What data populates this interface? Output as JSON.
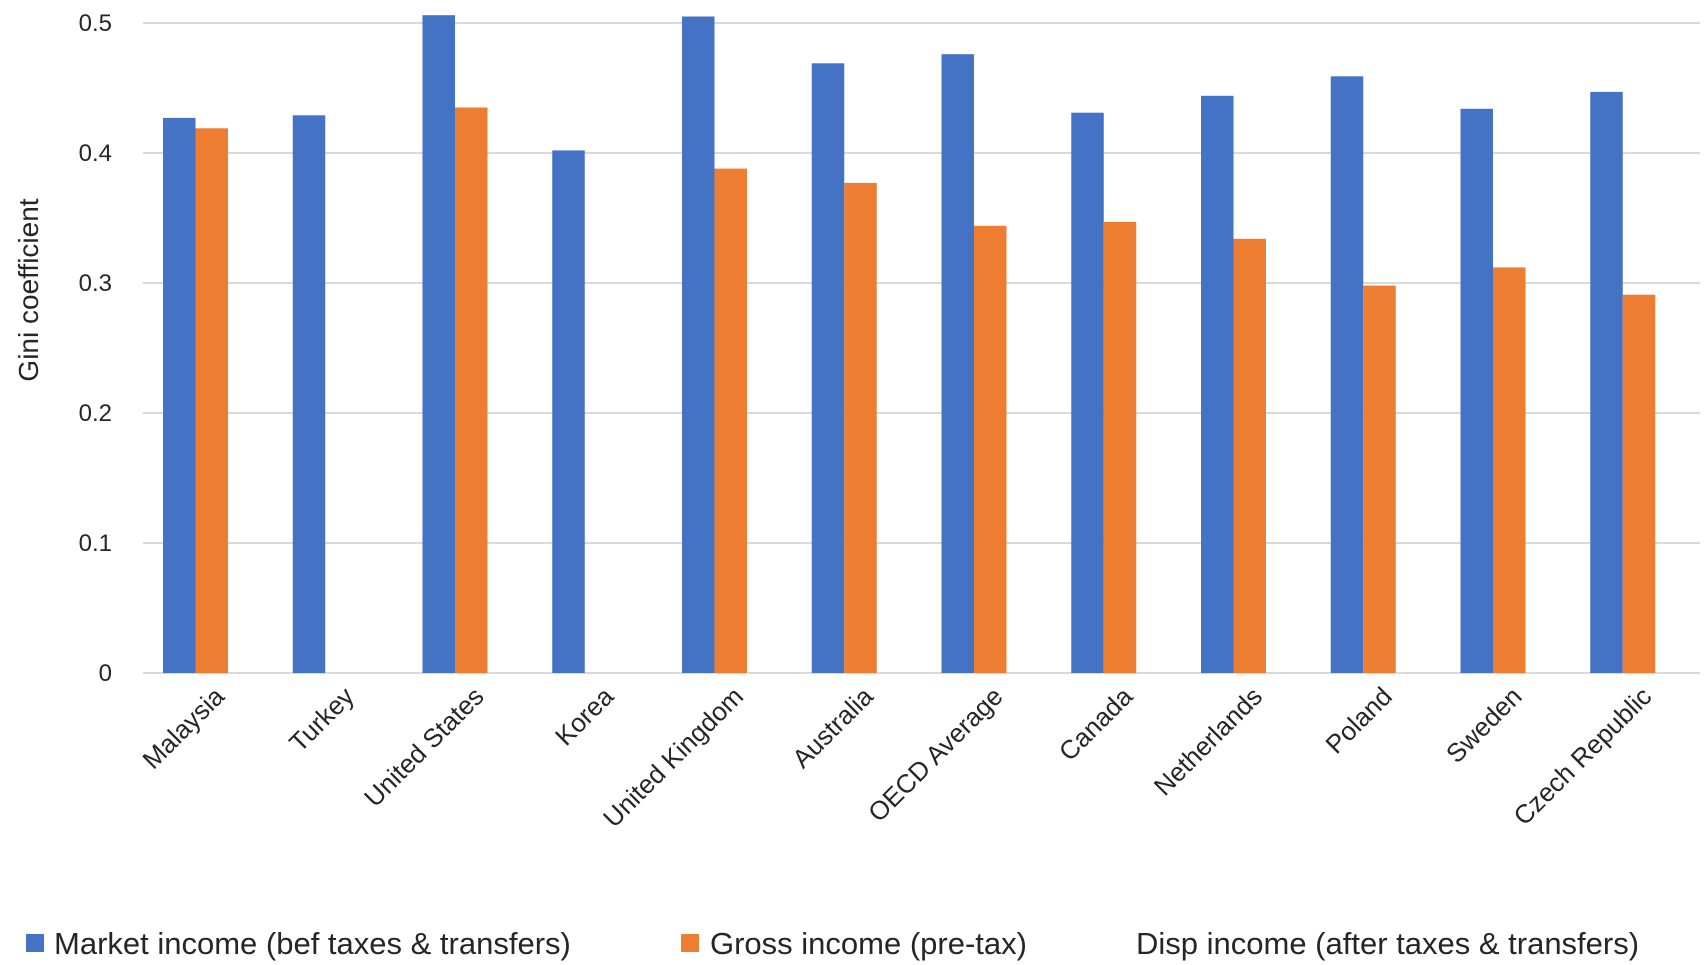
{
  "chart_data": {
    "type": "bar",
    "title": "",
    "xlabel": "",
    "ylabel": "Gini coefficient",
    "ylim": [
      0,
      0.5
    ],
    "yticks": [
      "0",
      "0.1",
      "0.2",
      "0.3",
      "0.4",
      "0.5"
    ],
    "ytick_values": [
      0,
      0.1,
      0.2,
      0.3,
      0.4,
      0.5
    ],
    "grid": true,
    "legend_position": "bottom",
    "categories": [
      "Malaysia",
      "Turkey",
      "United States",
      "Korea",
      "United Kingdom",
      "Australia",
      "OECD Average",
      "Canada",
      "Netherlands",
      "Poland",
      "Sweden",
      "Czech Republic"
    ],
    "series": [
      {
        "name": "Market income (bef taxes & transfers)",
        "color": "#4472c4",
        "values": [
          0.427,
          0.429,
          0.506,
          0.402,
          0.505,
          0.469,
          0.476,
          0.431,
          0.444,
          0.459,
          0.434,
          0.447
        ]
      },
      {
        "name": "Gross income (pre-tax)",
        "color": "#ed7d31",
        "values": [
          0.419,
          null,
          0.435,
          null,
          0.388,
          0.377,
          0.344,
          0.347,
          0.334,
          0.298,
          0.312,
          0.291
        ]
      },
      {
        "name": "Disp income (after taxes & transfers)",
        "color": "#a5a5a5",
        "values": [
          null,
          null,
          null,
          null,
          null,
          null,
          null,
          null,
          null,
          null,
          null,
          null
        ]
      }
    ]
  }
}
